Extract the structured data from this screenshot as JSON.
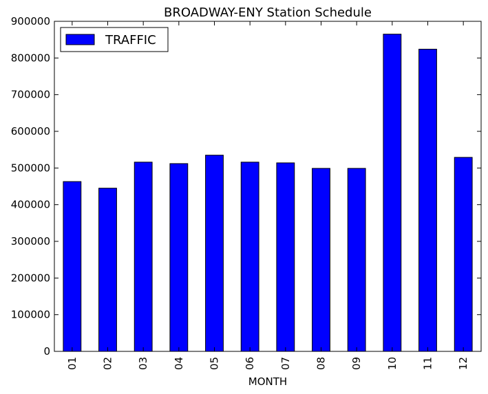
{
  "chart_data": {
    "type": "bar",
    "title": "BROADWAY-ENY Station Schedule",
    "xlabel": "MONTH",
    "ylabel": "",
    "categories": [
      "01",
      "02",
      "03",
      "04",
      "05",
      "06",
      "07",
      "08",
      "09",
      "10",
      "11",
      "12"
    ],
    "series": [
      {
        "name": "TRAFFIC",
        "color": "#0000ff",
        "values": [
          463000,
          445000,
          516000,
          512000,
          535000,
          516000,
          514000,
          499000,
          499000,
          865000,
          824000,
          529000
        ]
      }
    ],
    "ylim": [
      0,
      900000
    ],
    "yticks": [
      "0",
      "100000",
      "200000",
      "300000",
      "400000",
      "500000",
      "600000",
      "700000",
      "800000",
      "900000"
    ],
    "legend_position": "top-left",
    "grid": false
  }
}
